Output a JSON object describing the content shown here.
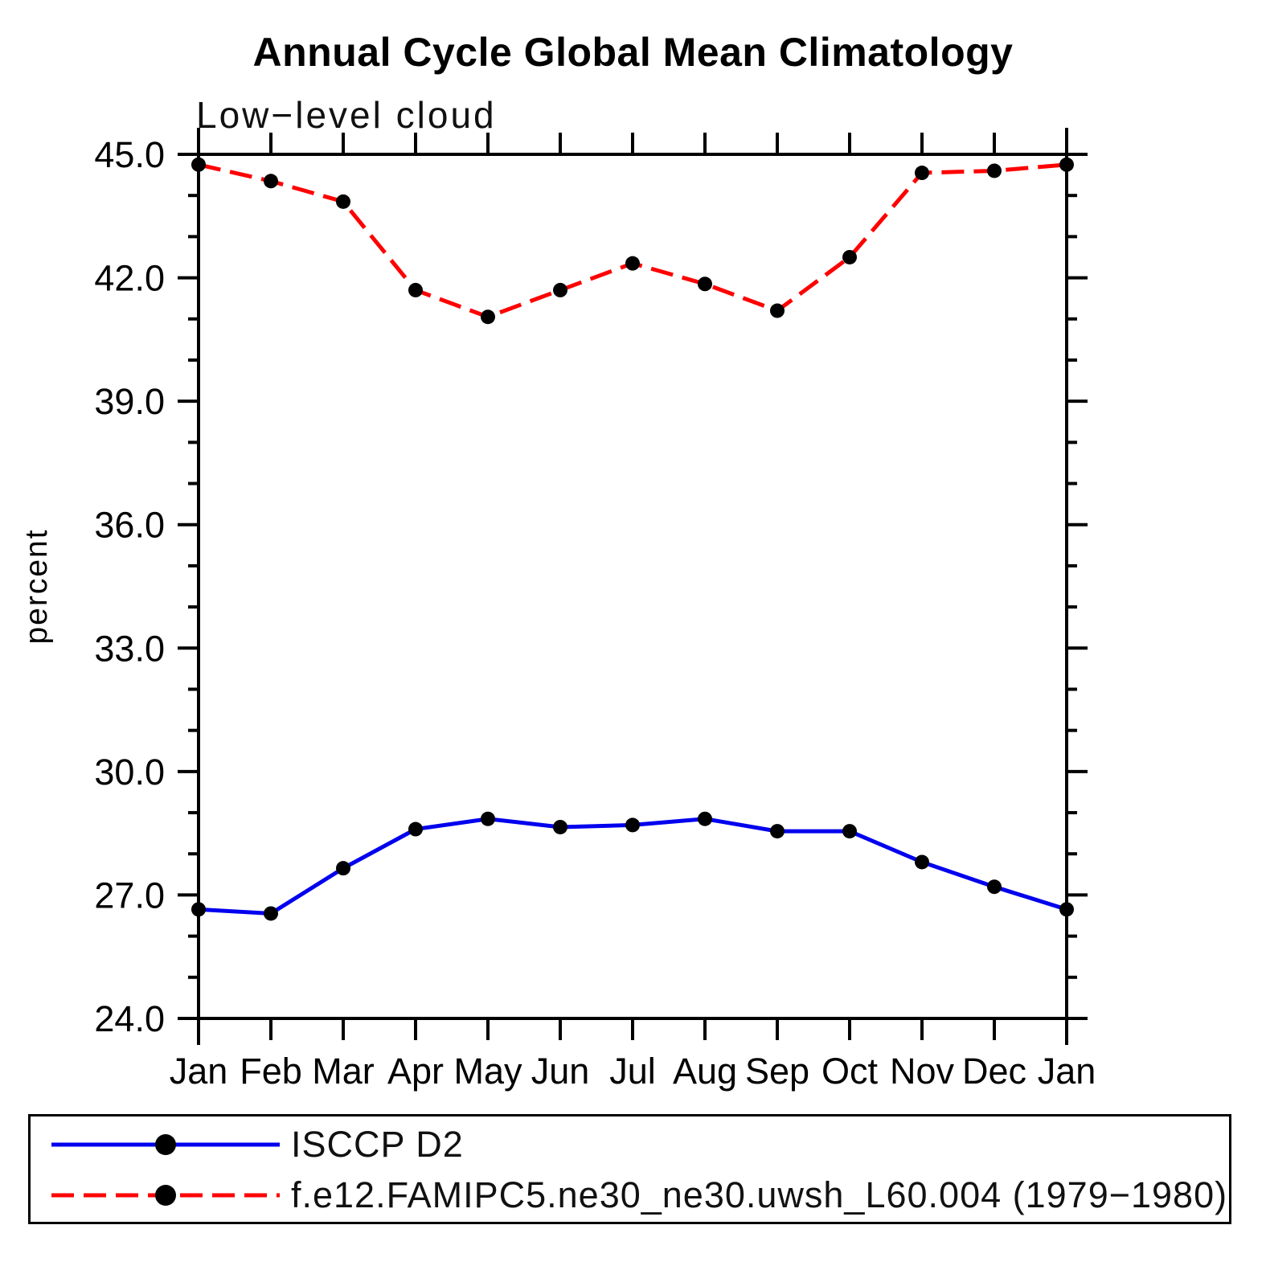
{
  "title": "Annual Cycle Global Mean Climatology",
  "subtitle": "Low−level cloud",
  "chart_data": {
    "type": "line",
    "title": "Annual Cycle Global Mean Climatology",
    "subtitle": "Low−level cloud",
    "xlabel": "",
    "ylabel": "percent",
    "x_categories": [
      "Jan",
      "Feb",
      "Mar",
      "Apr",
      "May",
      "Jun",
      "Jul",
      "Aug",
      "Sep",
      "Oct",
      "Nov",
      "Dec",
      "Jan"
    ],
    "ylim": [
      24.0,
      45.0
    ],
    "ytick_major_interval": 3,
    "ytick_minor_interval": 1,
    "ytick_labels": [
      "24.0",
      "27.0",
      "30.0",
      "33.0",
      "36.0",
      "39.0",
      "42.0",
      "45.0"
    ],
    "grid": false,
    "legend_position": "bottom",
    "series": [
      {
        "name": "ISCCP D2",
        "color": "#0000ee",
        "style": "solid",
        "marker": "circle",
        "marker_color": "#000000",
        "values": [
          26.65,
          26.55,
          27.65,
          28.6,
          28.85,
          28.65,
          28.7,
          28.85,
          28.55,
          28.55,
          27.8,
          27.2,
          26.65
        ]
      },
      {
        "name": "f.e12.FAMIPC5.ne30_ne30.uwsh_L60.004 (1979−1980)",
        "color": "#ff0000",
        "style": "dashed",
        "marker": "circle",
        "marker_color": "#000000",
        "values": [
          44.75,
          44.35,
          43.85,
          41.7,
          41.05,
          41.7,
          42.35,
          41.85,
          41.2,
          42.5,
          44.55,
          44.6,
          44.75
        ]
      }
    ]
  }
}
